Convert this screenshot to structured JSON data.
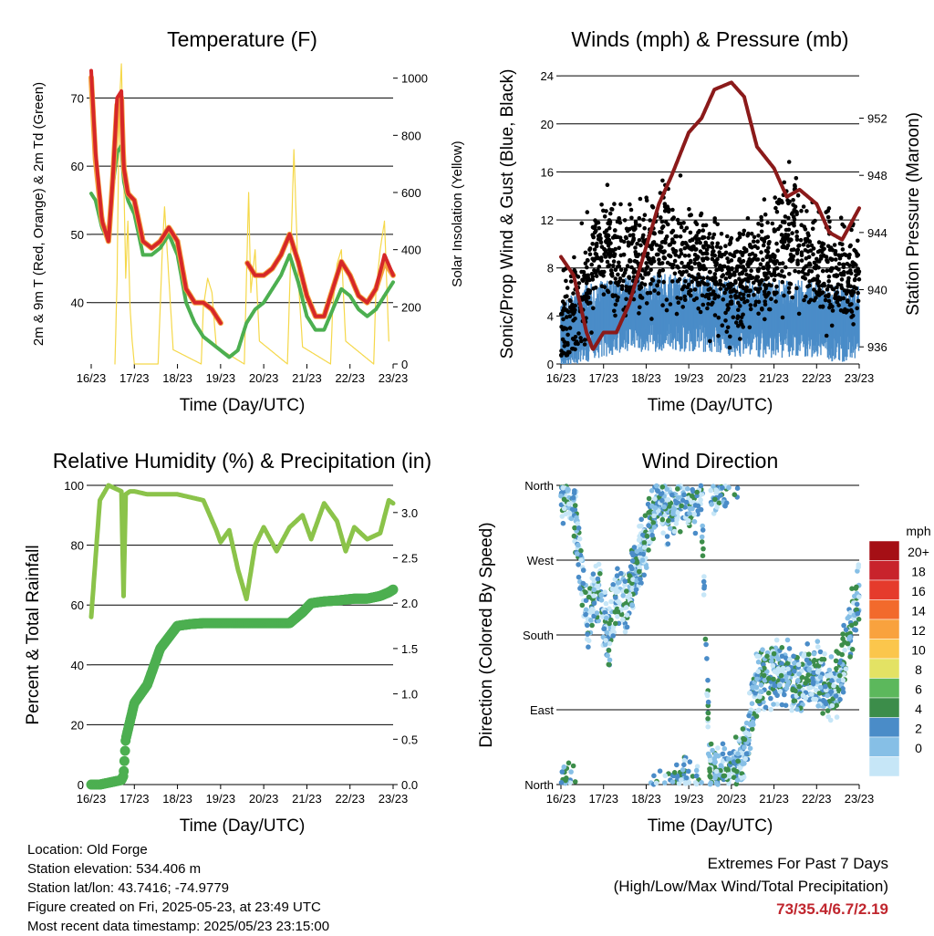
{
  "days": [
    "16/23",
    "17/23",
    "18/23",
    "19/23",
    "20/23",
    "21/23",
    "22/23",
    "23/23"
  ],
  "xlabel": "Time (Day/UTC)",
  "panels": {
    "temperature": {
      "title": "Temperature (F)",
      "ylabel_left": "2m & 9m T (Red, Orange) & 2m Td (Green)",
      "ylabel_right": "Solar Insolation (Yellow)",
      "left_ticks": [
        "40",
        "50",
        "60",
        "70"
      ],
      "right_ticks": [
        "0",
        "200",
        "400",
        "600",
        "800",
        "1000"
      ]
    },
    "winds": {
      "title": "Winds (mph) & Pressure (mb)",
      "ylabel_left": "Sonic/Prop Wind & Gust (Blue, Black)",
      "ylabel_right": "Station Pressure (Maroon)",
      "left_ticks": [
        "0",
        "4",
        "8",
        "12",
        "16",
        "20",
        "24"
      ],
      "right_ticks": [
        "936",
        "940",
        "944",
        "948",
        "952"
      ]
    },
    "humidity": {
      "title": "Relative Humidity (%) & Precipitation (in)",
      "ylabel_left": "Percent & Total Rainfall",
      "left_ticks": [
        "0",
        "20",
        "40",
        "60",
        "80",
        "100"
      ],
      "right_ticks": [
        "0.0",
        "0.5",
        "1.0",
        "1.5",
        "2.0",
        "2.5",
        "3.0"
      ]
    },
    "direction": {
      "title": "Wind Direction",
      "ylabel_left": "Direction (Colored By Speed)",
      "left_ticks": [
        "North",
        "East",
        "South",
        "West",
        "North"
      ],
      "legend_title": "mph",
      "legend_labels": [
        "20+",
        "18",
        "16",
        "14",
        "12",
        "10",
        "8",
        "6",
        "4",
        "2",
        "0"
      ],
      "legend_colors": [
        "#a50f15",
        "#c8232c",
        "#e53b2c",
        "#f26a2c",
        "#f9a23e",
        "#fbc64c",
        "#e3e264",
        "#5cb85c",
        "#3c8d4a",
        "#4a8cc8",
        "#86bfe6",
        "#c6e6f7"
      ]
    }
  },
  "chart_data": [
    {
      "type": "line",
      "title": "Temperature (F)",
      "xlabel": "Time (Day/UTC)",
      "ylabel": "2m & 9m T (Red, Orange) & 2m Td (Green)",
      "y2label": "Solar Insolation (Yellow)",
      "x_ticks": [
        "16/23",
        "17/23",
        "18/23",
        "19/23",
        "20/23",
        "21/23",
        "22/23",
        "23/23"
      ],
      "ylim": [
        31,
        75
      ],
      "y2lim": [
        0,
        1050
      ],
      "x": [
        0,
        0.1,
        0.25,
        0.4,
        0.5,
        0.6,
        0.7,
        0.75,
        0.85,
        1,
        1.2,
        1.4,
        1.6,
        1.8,
        2,
        2.2,
        2.4,
        2.6,
        2.8,
        3,
        3.2,
        3.4,
        3.6,
        3.8,
        4,
        4.2,
        4.4,
        4.6,
        4.8,
        5,
        5.2,
        5.4,
        5.6,
        5.8,
        6,
        6.2,
        6.4,
        6.6,
        6.8,
        7
      ],
      "series": [
        {
          "name": "2m T",
          "color": "#d62728",
          "values": [
            74,
            62,
            52,
            49,
            58,
            70,
            71,
            60,
            56,
            55,
            49,
            48,
            49,
            51,
            49,
            42,
            40,
            40,
            39,
            37,
            null,
            null,
            46,
            44,
            44,
            45,
            47,
            50,
            46,
            41,
            38,
            38,
            42,
            46,
            44,
            41,
            40,
            42,
            47,
            44
          ]
        },
        {
          "name": "9m T",
          "color": "#f4a340",
          "values": [
            73,
            61,
            52,
            49,
            58,
            69,
            70,
            60,
            56,
            55,
            49,
            48,
            49,
            51,
            49,
            42,
            40,
            40,
            39,
            37,
            null,
            null,
            46,
            44,
            44,
            45,
            47,
            50,
            46,
            41,
            38,
            38,
            42,
            46,
            44,
            41,
            40,
            42,
            46,
            44
          ]
        },
        {
          "name": "2m Td",
          "color": "#4caf50",
          "values": [
            56,
            55,
            51,
            49,
            57,
            62,
            63,
            58,
            55,
            53,
            47,
            47,
            48,
            50,
            47,
            40,
            37,
            35,
            34,
            33,
            32,
            33,
            37,
            39,
            40,
            42,
            44,
            47,
            43,
            38,
            36,
            36,
            39,
            42,
            41,
            39,
            38,
            39,
            41,
            43
          ]
        },
        {
          "name": "Solar Insolation",
          "color": "#f5d84a",
          "x": [
            0.55,
            0.6,
            0.65,
            0.7,
            0.75,
            0.8,
            0.85,
            0.9,
            0.95,
            1,
            1.55,
            1.6,
            1.65,
            1.7,
            1.8,
            1.9,
            2.55,
            2.6,
            2.7,
            2.8,
            2.9,
            3.55,
            3.6,
            3.65,
            3.7,
            3.8,
            3.9,
            4.55,
            4.6,
            4.7,
            4.8,
            4.9,
            5.55,
            5.6,
            5.7,
            5.8,
            5.9,
            6.55,
            6.6,
            6.7,
            6.8,
            6.9
          ],
          "values": [
            0,
            300,
            900,
            1050,
            700,
            300,
            500,
            200,
            80,
            0,
            0,
            200,
            400,
            550,
            300,
            50,
            0,
            200,
            300,
            250,
            60,
            0,
            300,
            600,
            250,
            400,
            80,
            0,
            250,
            750,
            300,
            60,
            0,
            200,
            350,
            400,
            80,
            0,
            250,
            400,
            500,
            80
          ]
        }
      ]
    },
    {
      "type": "scatter",
      "title": "Winds (mph) & Pressure (mb)",
      "xlabel": "Time (Day/UTC)",
      "ylabel": "Sonic/Prop Wind & Gust (Blue, Black)",
      "y2label": "Station Pressure (Maroon)",
      "x_ticks": [
        "16/23",
        "17/23",
        "18/23",
        "19/23",
        "20/23",
        "21/23",
        "22/23",
        "23/23"
      ],
      "ylim": [
        0,
        25
      ],
      "y2lim": [
        934.8,
        955.8
      ],
      "x": [
        0,
        0.5,
        1,
        1.5,
        2,
        2.5,
        3,
        3.5,
        4,
        4.5,
        5,
        5.5,
        6,
        6.5,
        7
      ],
      "series": [
        {
          "name": "Wind (avg)",
          "color": "#4a8cc8",
          "values": [
            1,
            2.5,
            3,
            3.5,
            3.5,
            3.5,
            3.5,
            3.5,
            3,
            3,
            3,
            3,
            3,
            2.5,
            3
          ]
        },
        {
          "name": "Gust (avg)",
          "color": "#000000",
          "values": [
            2,
            6,
            10,
            8,
            9,
            10,
            9,
            8,
            6,
            8,
            9,
            11,
            8,
            7,
            7
          ]
        },
        {
          "name": "Station Pressure",
          "color": "#8b1a1a",
          "x": [
            0,
            0.3,
            0.6,
            0.75,
            1,
            1.3,
            1.6,
            2,
            2.3,
            2.6,
            3,
            3.3,
            3.6,
            4,
            4.3,
            4.6,
            5,
            5.3,
            5.6,
            6,
            6.3,
            6.6,
            7
          ],
          "values": [
            942.3,
            941,
            937,
            935.8,
            937,
            937,
            939,
            943,
            946,
            948,
            951,
            952,
            954,
            954.5,
            953.5,
            950,
            948.5,
            946.5,
            947,
            946,
            944,
            943.5,
            945.7
          ]
        }
      ]
    },
    {
      "type": "line",
      "title": "Relative Humidity (%) & Precipitation (in)",
      "xlabel": "Time (Day/UTC)",
      "ylabel": "Percent & Total Rainfall",
      "x_ticks": [
        "16/23",
        "17/23",
        "18/23",
        "19/23",
        "20/23",
        "21/23",
        "22/23",
        "23/23"
      ],
      "ylim": [
        0,
        100
      ],
      "y2lim": [
        0,
        3.3
      ],
      "x": [
        0,
        0.2,
        0.4,
        0.7,
        0.75,
        0.8,
        0.9,
        1,
        1.3,
        1.6,
        2,
        2.3,
        2.6,
        2.9,
        3,
        3.2,
        3.4,
        3.6,
        3.8,
        4,
        4.3,
        4.6,
        4.9,
        5.1,
        5.4,
        5.7,
        5.9,
        6.1,
        6.4,
        6.7,
        6.9,
        7
      ],
      "series": [
        {
          "name": "Relative Humidity",
          "color": "#8bc34a",
          "values": [
            56,
            95,
            100,
            98,
            63,
            97,
            98,
            98,
            97,
            97,
            97,
            96,
            95,
            85,
            81,
            85,
            72,
            62,
            80,
            86,
            78,
            86,
            90,
            82,
            94,
            88,
            78,
            86,
            82,
            84,
            95,
            94
          ]
        },
        {
          "name": "Total Precipitation",
          "color": "#4caf50",
          "values": [
            0,
            0,
            0.02,
            0.05,
            0.1,
            0.5,
            0.7,
            0.9,
            1.1,
            1.5,
            1.75,
            1.77,
            1.78,
            1.78,
            1.78,
            1.78,
            1.78,
            1.78,
            1.78,
            1.78,
            1.78,
            1.78,
            1.9,
            2.0,
            2.02,
            2.03,
            2.04,
            2.05,
            2.05,
            2.08,
            2.12,
            2.15
          ]
        }
      ]
    },
    {
      "type": "scatter",
      "title": "Wind Direction",
      "xlabel": "Time (Day/UTC)",
      "ylabel": "Direction (Colored By Speed)",
      "x_ticks": [
        "16/23",
        "17/23",
        "18/23",
        "19/23",
        "20/23",
        "21/23",
        "22/23",
        "23/23"
      ],
      "y_ticks": [
        "North",
        "East",
        "South",
        "West",
        "North"
      ],
      "ylim": [
        0,
        360
      ],
      "x": [
        0.1,
        0.3,
        0.6,
        0.9,
        1.1,
        1.3,
        1.5,
        1.7,
        1.9,
        2.1,
        2.3,
        2.5,
        2.7,
        2.9,
        3.1,
        3.3,
        3.5,
        3.7,
        3.9,
        4.1,
        4.4,
        4.6,
        4.8,
        5,
        5.2,
        5.4,
        5.6,
        5.8,
        6,
        6.2,
        6.4,
        6.6,
        6.8,
        7
      ],
      "values": [
        350,
        340,
        200,
        240,
        170,
        230,
        215,
        250,
        280,
        320,
        345,
        330,
        340,
        350,
        345,
        350,
        10,
        5,
        10,
        20,
        60,
        125,
        130,
        135,
        135,
        130,
        120,
        140,
        130,
        120,
        110,
        140,
        190,
        230
      ],
      "legend": {
        "title": "mph",
        "labels": [
          "20+",
          "18",
          "16",
          "14",
          "12",
          "10",
          "8",
          "6",
          "4",
          "2",
          "0"
        ]
      }
    }
  ],
  "info": {
    "location": "Location: Old Forge",
    "elevation": "Station elevation: 534.406 m",
    "latlon": "Station lat/lon: 43.7416; -74.9779",
    "created": "Figure created on Fri, 2025-05-23, at 23:49 UTC",
    "recent": "Most recent data timestamp: 2025/05/23 23:15:00"
  },
  "extremes": {
    "line1": "Extremes For Past 7 Days",
    "line2": "(High/Low/Max Wind/Total Precipitation)",
    "value": "73/35.4/6.7/2.19"
  }
}
